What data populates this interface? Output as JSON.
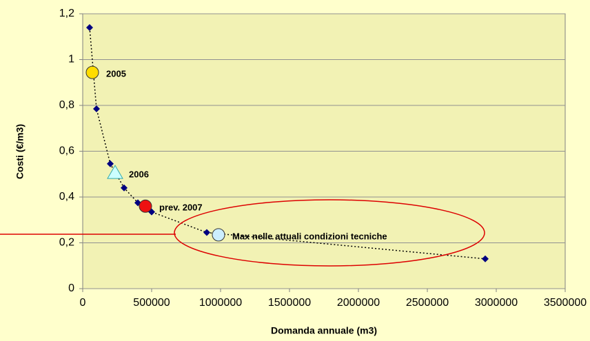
{
  "chart_data": {
    "type": "scatter",
    "x_label": "Domanda annuale (m3)",
    "y_label": "Costi (€/m3)",
    "series": [
      {
        "color": "#000080",
        "x": [
          50000,
          100000,
          200000,
          300000,
          400000,
          500000,
          900000,
          2920000
        ],
        "values": [
          1.14,
          0.785,
          0.545,
          0.44,
          0.375,
          0.335,
          0.245,
          0.13
        ]
      }
    ],
    "annotations": [
      {
        "label": "2005",
        "x": 70000,
        "y": 0.944,
        "marker": "circle",
        "color": "#ffdd00"
      },
      {
        "label": "2006",
        "x": 235000,
        "y": 0.505,
        "marker": "triangle",
        "color": "#ccffff"
      },
      {
        "label": "prev. 2007",
        "x": 455000,
        "y": 0.36,
        "marker": "circle",
        "color": "#ee1111"
      },
      {
        "label": "Max nelle attuali condizioni tecniche",
        "x": 985000,
        "y": 0.235,
        "marker": "circle",
        "color": "#cceeff"
      }
    ],
    "xlim": [
      0,
      3500000
    ],
    "xticks": [
      0,
      500000,
      1000000,
      1500000,
      2000000,
      2500000,
      3000000,
      3500000
    ],
    "ylim": [
      0,
      1.2
    ],
    "yticks": [
      0,
      {
        "value": 0.2,
        "label": "0,2"
      },
      {
        "value": 0.4,
        "label": "0,4"
      },
      {
        "value": 0.6,
        "label": "0,6"
      },
      {
        "value": 0.8,
        "label": "0,8"
      },
      1,
      {
        "value": 1.2,
        "label": "1,2"
      }
    ],
    "grid": true
  }
}
